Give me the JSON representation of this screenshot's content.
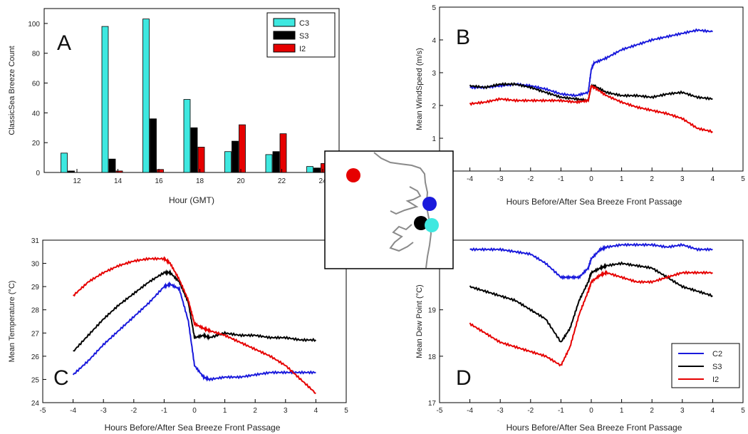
{
  "colors": {
    "C3": "#3ee8e0",
    "S3": "#000000",
    "I2": "#e60000",
    "C2": "#1a1adc",
    "frame": "#000000",
    "coast": "#8a8a8a"
  },
  "chart_data": [
    {
      "panel": "A",
      "type": "bar",
      "xlabel": "Hour (GMT)",
      "ylabel": "ClassicSea Breeze  Count",
      "categories": [
        "12",
        "14",
        "16",
        "18",
        "20",
        "22",
        "24"
      ],
      "ylim": [
        0,
        110
      ],
      "yticks": [
        "0",
        "20",
        "40",
        "60",
        "80",
        "100"
      ],
      "series": [
        {
          "name": "C3",
          "color_key": "C3",
          "values": [
            13,
            98,
            103,
            49,
            14,
            12,
            4
          ]
        },
        {
          "name": "S3",
          "color_key": "S3",
          "values": [
            1,
            9,
            36,
            30,
            21,
            14,
            3
          ]
        },
        {
          "name": "I2",
          "color_key": "I2",
          "values": [
            0,
            1,
            2,
            17,
            32,
            26,
            6
          ]
        }
      ],
      "legend": "top-right"
    },
    {
      "panel": "B",
      "type": "line",
      "xlabel": "Hours Before/After  Sea Breeze  Front Passage",
      "ylabel": "Mean WindSpeed  (m/s)",
      "xlim": [
        -5,
        5
      ],
      "ylim": [
        0,
        5
      ],
      "xticks": [
        "-4",
        "-3",
        "-2",
        "-1",
        "0",
        "1",
        "2",
        "3",
        "4",
        "5"
      ],
      "yticks": [
        "1",
        "2",
        "3",
        "4",
        "5"
      ],
      "series": [
        {
          "color_key": "C2",
          "x": [
            -4,
            -3.5,
            -3,
            -2.5,
            -2,
            -1.5,
            -1,
            -0.5,
            -0.1,
            0,
            0.1,
            0.5,
            1,
            1.5,
            2,
            2.5,
            3,
            3.5,
            4
          ],
          "y": [
            2.55,
            2.55,
            2.6,
            2.65,
            2.6,
            2.5,
            2.35,
            2.3,
            2.4,
            3.1,
            3.3,
            3.45,
            3.7,
            3.85,
            4.0,
            4.1,
            4.2,
            4.3,
            4.25
          ]
        },
        {
          "color_key": "S3",
          "x": [
            -4,
            -3.5,
            -3,
            -2.5,
            -2,
            -1.5,
            -1,
            -0.5,
            -0.1,
            0,
            0.1,
            0.5,
            1,
            1.5,
            2,
            2.5,
            3,
            3.5,
            4
          ],
          "y": [
            2.6,
            2.55,
            2.65,
            2.65,
            2.55,
            2.4,
            2.25,
            2.2,
            2.15,
            2.6,
            2.6,
            2.4,
            2.3,
            2.3,
            2.25,
            2.35,
            2.4,
            2.25,
            2.2
          ]
        },
        {
          "color_key": "I2",
          "x": [
            -4,
            -3.5,
            -3,
            -2.5,
            -2,
            -1.5,
            -1,
            -0.5,
            -0.1,
            0,
            0.1,
            0.5,
            1,
            1.5,
            2,
            2.5,
            3,
            3.5,
            4
          ],
          "y": [
            2.05,
            2.1,
            2.2,
            2.15,
            2.15,
            2.15,
            2.15,
            2.1,
            2.15,
            2.6,
            2.55,
            2.3,
            2.1,
            1.95,
            1.85,
            1.75,
            1.6,
            1.3,
            1.2
          ]
        }
      ]
    },
    {
      "panel": "C",
      "type": "line",
      "xlabel": "Hours Before/After  Sea Breeze  Front Passage",
      "ylabel": "Mean Temperature  (°C)",
      "xlim": [
        -5,
        5
      ],
      "ylim": [
        24,
        31
      ],
      "xticks": [
        "-5",
        "-4",
        "-3",
        "-2",
        "-1",
        "0",
        "1",
        "2",
        "3",
        "4",
        "5"
      ],
      "yticks": [
        "24",
        "25",
        "26",
        "27",
        "28",
        "29",
        "30",
        "31"
      ],
      "series": [
        {
          "color_key": "C2",
          "x": [
            -4,
            -3.5,
            -3,
            -2.5,
            -2,
            -1.5,
            -1,
            -0.8,
            -0.5,
            -0.2,
            0,
            0.3,
            0.5,
            1,
            1.5,
            2,
            2.5,
            3,
            3.5,
            4
          ],
          "y": [
            25.2,
            25.8,
            26.5,
            27.1,
            27.7,
            28.3,
            29.0,
            29.1,
            28.9,
            27.5,
            25.6,
            25.1,
            25.0,
            25.1,
            25.1,
            25.2,
            25.3,
            25.3,
            25.3,
            25.3
          ]
        },
        {
          "color_key": "S3",
          "x": [
            -4,
            -3.5,
            -3,
            -2.5,
            -2,
            -1.5,
            -1,
            -0.8,
            -0.5,
            -0.2,
            0,
            0.3,
            0.5,
            1,
            1.5,
            2,
            2.5,
            3,
            3.5,
            4
          ],
          "y": [
            26.2,
            26.9,
            27.6,
            28.2,
            28.7,
            29.2,
            29.6,
            29.6,
            29.2,
            28.3,
            26.8,
            26.9,
            26.8,
            27.0,
            26.9,
            26.9,
            26.8,
            26.8,
            26.7,
            26.7
          ]
        },
        {
          "color_key": "I2",
          "x": [
            -4,
            -3.5,
            -3,
            -2.5,
            -2,
            -1.5,
            -1,
            -0.8,
            -0.5,
            -0.2,
            0,
            0.3,
            0.5,
            1,
            1.5,
            2,
            2.5,
            3,
            3.5,
            4
          ],
          "y": [
            28.6,
            29.2,
            29.6,
            29.9,
            30.1,
            30.2,
            30.2,
            30.0,
            29.3,
            28.4,
            27.4,
            27.2,
            27.1,
            26.9,
            26.6,
            26.3,
            26.0,
            25.6,
            25.0,
            24.4
          ]
        }
      ]
    },
    {
      "panel": "D",
      "type": "line",
      "xlabel": "Hours Before/After  Sea Breeze  Front Passage",
      "ylabel": "Mean Dew Point (°C)",
      "xlim": [
        -5,
        5
      ],
      "ylim": [
        17,
        20.5
      ],
      "xticks": [
        "-5",
        "-4",
        "-3",
        "-2",
        "-1",
        "0",
        "1",
        "2",
        "3",
        "4",
        "5"
      ],
      "yticks": [
        "17",
        "18",
        "19",
        "20"
      ],
      "series": [
        {
          "name": "C2",
          "color_key": "C2",
          "x": [
            -4,
            -3.5,
            -3,
            -2.5,
            -2,
            -1.5,
            -1,
            -0.7,
            -0.4,
            -0.1,
            0,
            0.3,
            0.5,
            1,
            1.5,
            2,
            2.5,
            3,
            3.5,
            4
          ],
          "y": [
            20.3,
            20.3,
            20.3,
            20.25,
            20.2,
            20.0,
            19.7,
            19.7,
            19.7,
            19.9,
            20.1,
            20.3,
            20.35,
            20.4,
            20.4,
            20.4,
            20.35,
            20.4,
            20.3,
            20.3
          ]
        },
        {
          "name": "S3",
          "color_key": "S3",
          "x": [
            -4,
            -3.5,
            -3,
            -2.5,
            -2,
            -1.5,
            -1,
            -0.7,
            -0.4,
            -0.1,
            0,
            0.3,
            0.5,
            1,
            1.5,
            2,
            2.5,
            3,
            3.5,
            4
          ],
          "y": [
            19.5,
            19.4,
            19.3,
            19.2,
            19.0,
            18.8,
            18.3,
            18.6,
            19.2,
            19.6,
            19.8,
            19.9,
            19.95,
            20.0,
            19.95,
            19.9,
            19.7,
            19.5,
            19.4,
            19.3
          ]
        },
        {
          "name": "I2",
          "color_key": "I2",
          "x": [
            -4,
            -3.5,
            -3,
            -2.5,
            -2,
            -1.5,
            -1,
            -0.7,
            -0.4,
            -0.1,
            0,
            0.3,
            0.5,
            1,
            1.5,
            2,
            2.5,
            3,
            3.5,
            4
          ],
          "y": [
            18.7,
            18.5,
            18.3,
            18.2,
            18.1,
            18.0,
            17.8,
            18.2,
            18.9,
            19.4,
            19.6,
            19.75,
            19.8,
            19.7,
            19.6,
            19.6,
            19.7,
            19.8,
            19.8,
            19.8
          ]
        }
      ],
      "legend": "bottom-right"
    }
  ],
  "inset_map": {
    "stations": [
      {
        "color_key": "I2"
      },
      {
        "color_key": "C2"
      },
      {
        "color_key": "S3"
      },
      {
        "color_key": "C3"
      }
    ]
  }
}
